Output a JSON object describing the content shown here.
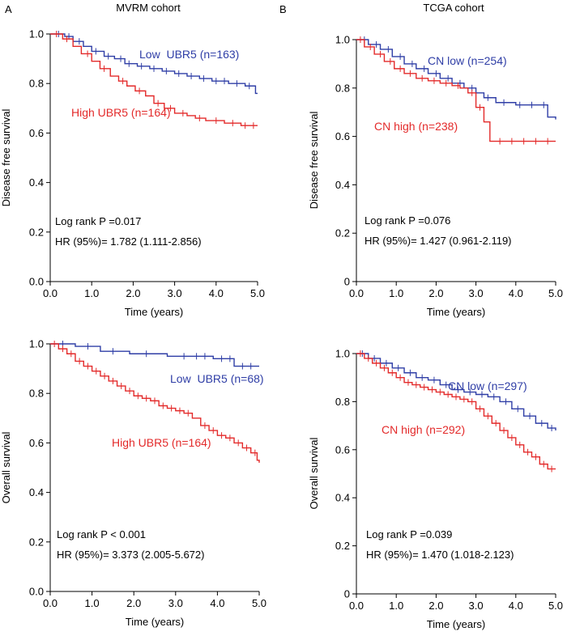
{
  "panel_letters": [
    "A",
    "B"
  ],
  "chart_data": [
    {
      "type": "line",
      "subtype": "kaplan-meier",
      "title": "MVRM cohort",
      "xlabel": "Time (years)",
      "ylabel": "Disease free survival",
      "xlim": [
        0,
        5
      ],
      "ylim": [
        0,
        1
      ],
      "xticks": [
        0,
        1,
        2,
        3,
        4,
        5
      ],
      "xtick_labels": [
        "0.0",
        "1.0",
        "2.0",
        "3.0",
        "4.0",
        "5.0"
      ],
      "yticks": [
        0,
        0.2,
        0.4,
        0.6,
        0.8,
        1
      ],
      "ytick_labels": [
        "0.0",
        "0.2",
        "0.4",
        "0.6",
        "0.8",
        "1.0"
      ],
      "annotations": [
        "Log rank P =0.017",
        "HR (95%)= 1.782 (1.111-2.856)"
      ],
      "series": [
        {
          "name": "Low",
          "label": "Low  UBR5 (n=163)",
          "color": "#2f3ea6",
          "x": [
            0,
            0.35,
            0.55,
            0.8,
            1.0,
            1.3,
            1.55,
            1.8,
            2.1,
            2.4,
            2.7,
            3.0,
            3.3,
            3.6,
            3.9,
            4.3,
            4.7,
            4.95,
            5.0
          ],
          "y": [
            1.0,
            0.99,
            0.97,
            0.95,
            0.93,
            0.91,
            0.9,
            0.88,
            0.87,
            0.86,
            0.85,
            0.84,
            0.83,
            0.82,
            0.81,
            0.8,
            0.79,
            0.76,
            0.76
          ],
          "censors": [
            0.2,
            0.45,
            0.7,
            1.1,
            1.4,
            1.7,
            1.9,
            2.2,
            2.5,
            2.8,
            3.1,
            3.4,
            3.7,
            4.0,
            4.2,
            4.5,
            4.8
          ]
        },
        {
          "name": "High",
          "label": "High UBR5 (n=164)",
          "color": "#e32a2a",
          "x": [
            0,
            0.3,
            0.55,
            0.75,
            1.0,
            1.2,
            1.45,
            1.65,
            1.85,
            2.05,
            2.3,
            2.5,
            2.75,
            3.0,
            3.3,
            3.5,
            3.75,
            4.2,
            4.6,
            5.0
          ],
          "y": [
            1.0,
            0.98,
            0.95,
            0.92,
            0.89,
            0.86,
            0.83,
            0.81,
            0.79,
            0.77,
            0.75,
            0.72,
            0.7,
            0.68,
            0.67,
            0.66,
            0.65,
            0.64,
            0.63,
            0.63
          ],
          "censors": [
            0.15,
            0.4,
            0.9,
            1.3,
            1.75,
            2.15,
            2.6,
            2.9,
            3.2,
            3.6,
            4.0,
            4.4,
            4.7,
            4.9
          ]
        }
      ]
    },
    {
      "type": "line",
      "subtype": "kaplan-meier",
      "title": "TCGA cohort",
      "xlabel": "Time (years)",
      "ylabel": "Disease free survival",
      "xlim": [
        0,
        5
      ],
      "ylim": [
        0,
        1
      ],
      "xticks": [
        0,
        1,
        2,
        3,
        4,
        5
      ],
      "xtick_labels": [
        "0.0",
        "1.0",
        "2.0",
        "3.0",
        "4.0",
        "5.0"
      ],
      "yticks": [
        0,
        0.2,
        0.4,
        0.6,
        0.8,
        1
      ],
      "ytick_labels": [
        "0",
        "0.2",
        "0.4",
        "0.6",
        "0.8",
        "1.0"
      ],
      "annotations": [
        "Log rank P =0.076",
        "HR (95%)= 1.427 (0.961-2.119)"
      ],
      "series": [
        {
          "name": "CN low",
          "label": "CN low (n=254)",
          "color": "#2f3ea6",
          "x": [
            0,
            0.3,
            0.6,
            0.9,
            1.2,
            1.5,
            1.8,
            2.1,
            2.4,
            2.7,
            3.0,
            3.2,
            3.5,
            4.0,
            4.5,
            4.8,
            5.0
          ],
          "y": [
            1.0,
            0.98,
            0.96,
            0.93,
            0.9,
            0.88,
            0.86,
            0.84,
            0.82,
            0.8,
            0.78,
            0.76,
            0.74,
            0.73,
            0.73,
            0.68,
            0.67
          ],
          "censors": [
            0.2,
            0.5,
            0.8,
            1.1,
            1.4,
            1.7,
            2.0,
            2.3,
            2.6,
            2.9,
            3.3,
            3.7,
            4.1,
            4.4,
            4.7
          ]
        },
        {
          "name": "CN high",
          "label": "CN high (n=238)",
          "color": "#e32a2a",
          "x": [
            0,
            0.2,
            0.45,
            0.7,
            0.95,
            1.2,
            1.5,
            1.8,
            2.1,
            2.4,
            2.6,
            2.8,
            3.0,
            3.2,
            3.35,
            5.0
          ],
          "y": [
            1.0,
            0.97,
            0.94,
            0.91,
            0.88,
            0.86,
            0.84,
            0.83,
            0.82,
            0.81,
            0.8,
            0.78,
            0.72,
            0.66,
            0.58,
            0.58
          ],
          "censors": [
            0.1,
            0.35,
            0.6,
            0.85,
            1.1,
            1.35,
            1.65,
            1.95,
            2.25,
            2.55,
            2.9,
            3.1,
            3.6,
            3.9,
            4.2,
            4.5,
            4.8
          ]
        }
      ]
    },
    {
      "type": "line",
      "subtype": "kaplan-meier",
      "title": "",
      "xlabel": "Time (years)",
      "ylabel": "Overall survival",
      "xlim": [
        0,
        5
      ],
      "ylim": [
        0,
        1
      ],
      "xticks": [
        0,
        1,
        2,
        3,
        4,
        5
      ],
      "xtick_labels": [
        "0.0",
        "1.0",
        "2.0",
        "3.0",
        "4.0",
        "5.0"
      ],
      "yticks": [
        0,
        0.2,
        0.4,
        0.6,
        0.8,
        1
      ],
      "ytick_labels": [
        "0.0",
        "0.2",
        "0.4",
        "0.6",
        "0.8",
        "1.0"
      ],
      "annotations": [
        "Log rank P < 0.001",
        "HR (95%)= 3.373 (2.005-5.672)"
      ],
      "series": [
        {
          "name": "Low",
          "label": "Low  UBR5 (n=68)",
          "color": "#2f3ea6",
          "x": [
            0,
            0.6,
            1.2,
            1.9,
            2.8,
            3.9,
            4.4,
            5.0
          ],
          "y": [
            1.0,
            0.99,
            0.97,
            0.96,
            0.95,
            0.94,
            0.91,
            0.91
          ],
          "censors": [
            0.3,
            0.9,
            1.5,
            2.3,
            3.2,
            3.5,
            3.7,
            4.1,
            4.3,
            4.6,
            4.8
          ]
        },
        {
          "name": "High",
          "label": "High UBR5 (n=164)",
          "color": "#e32a2a",
          "x": [
            0,
            0.2,
            0.4,
            0.6,
            0.8,
            1.0,
            1.2,
            1.4,
            1.6,
            1.8,
            2.0,
            2.2,
            2.4,
            2.6,
            2.8,
            3.0,
            3.2,
            3.4,
            3.6,
            3.8,
            4.0,
            4.2,
            4.4,
            4.6,
            4.8,
            4.95,
            5.0
          ],
          "y": [
            1.0,
            0.98,
            0.96,
            0.93,
            0.91,
            0.89,
            0.87,
            0.85,
            0.83,
            0.81,
            0.79,
            0.78,
            0.77,
            0.75,
            0.74,
            0.73,
            0.72,
            0.7,
            0.67,
            0.65,
            0.63,
            0.62,
            0.6,
            0.58,
            0.56,
            0.53,
            0.52
          ],
          "censors": [
            0.1,
            0.3,
            0.5,
            0.7,
            0.9,
            1.1,
            1.3,
            1.5,
            1.7,
            1.9,
            2.1,
            2.3,
            2.5,
            2.7,
            2.9,
            3.1,
            3.3,
            3.7,
            3.9,
            4.1,
            4.3,
            4.5,
            4.7,
            4.9
          ]
        }
      ]
    },
    {
      "type": "line",
      "subtype": "kaplan-meier",
      "title": "",
      "xlabel": "Time (years)",
      "ylabel": "Overall survival",
      "xlim": [
        0,
        5
      ],
      "ylim": [
        0,
        1
      ],
      "xticks": [
        0,
        1,
        2,
        3,
        4,
        5
      ],
      "xtick_labels": [
        "0.0",
        "1.0",
        "2.0",
        "3.0",
        "4.0",
        "5.0"
      ],
      "yticks": [
        0,
        0.2,
        0.4,
        0.6,
        0.8,
        1
      ],
      "ytick_labels": [
        "0",
        "0.2",
        "0.4",
        "0.6",
        "0.8",
        "1.0"
      ],
      "annotations": [
        "Log rank P =0.039",
        "HR (95%)= 1.470 (1.018-2.123)"
      ],
      "series": [
        {
          "name": "CN low",
          "label": "CN low (n=297)",
          "color": "#2f3ea6",
          "x": [
            0,
            0.3,
            0.6,
            0.9,
            1.2,
            1.5,
            1.8,
            2.1,
            2.4,
            2.7,
            3.0,
            3.3,
            3.6,
            3.9,
            4.2,
            4.5,
            4.8,
            5.0
          ],
          "y": [
            1.0,
            0.98,
            0.96,
            0.94,
            0.92,
            0.9,
            0.89,
            0.87,
            0.85,
            0.84,
            0.83,
            0.82,
            0.8,
            0.77,
            0.74,
            0.71,
            0.69,
            0.68
          ],
          "censors": [
            0.15,
            0.45,
            0.75,
            1.05,
            1.35,
            1.65,
            1.95,
            2.25,
            2.55,
            2.85,
            3.15,
            3.45,
            3.75,
            4.05,
            4.35,
            4.65,
            4.9
          ]
        },
        {
          "name": "CN high",
          "label": "CN high (n=292)",
          "color": "#e32a2a",
          "x": [
            0,
            0.2,
            0.4,
            0.6,
            0.8,
            1.0,
            1.2,
            1.4,
            1.6,
            1.8,
            2.0,
            2.2,
            2.4,
            2.6,
            2.8,
            3.0,
            3.2,
            3.4,
            3.6,
            3.8,
            4.0,
            4.2,
            4.4,
            4.6,
            4.8,
            5.0
          ],
          "y": [
            1.0,
            0.98,
            0.96,
            0.94,
            0.92,
            0.9,
            0.88,
            0.87,
            0.86,
            0.85,
            0.84,
            0.83,
            0.82,
            0.81,
            0.8,
            0.77,
            0.74,
            0.71,
            0.68,
            0.65,
            0.62,
            0.59,
            0.57,
            0.54,
            0.52,
            0.52
          ],
          "censors": [
            0.1,
            0.3,
            0.5,
            0.7,
            0.9,
            1.1,
            1.3,
            1.5,
            1.7,
            1.9,
            2.1,
            2.3,
            2.5,
            2.7,
            2.9,
            3.1,
            3.3,
            3.5,
            3.7,
            3.9,
            4.1,
            4.3,
            4.5,
            4.7,
            4.9
          ]
        }
      ]
    }
  ]
}
